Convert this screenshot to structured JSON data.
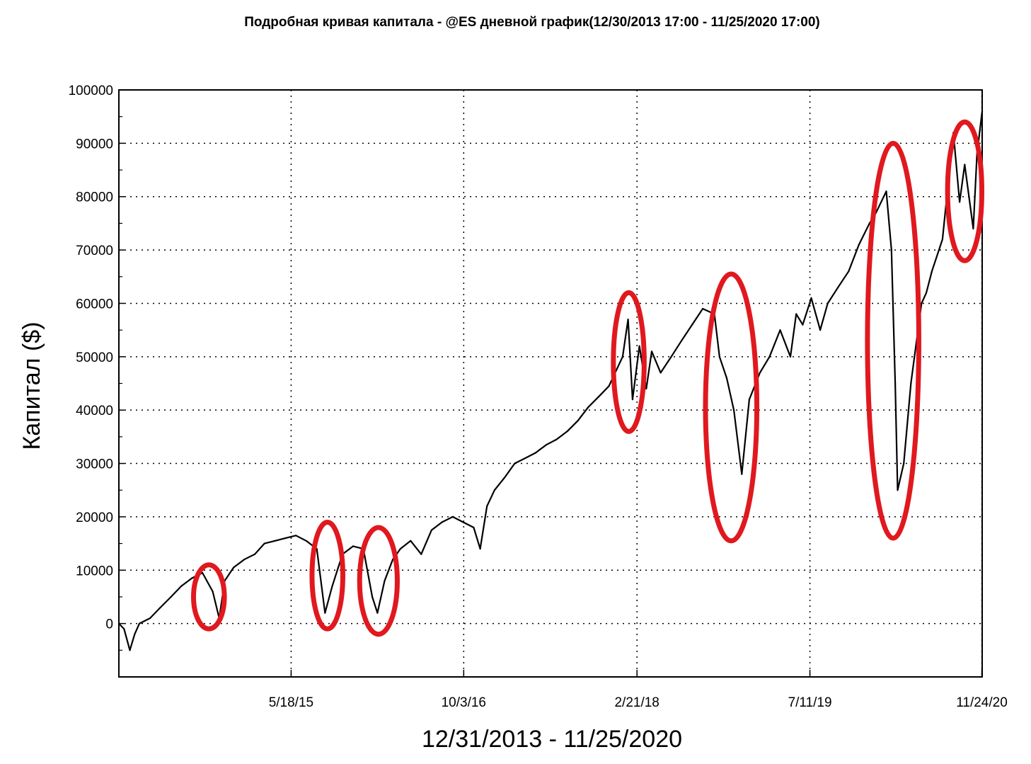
{
  "chart_data": {
    "type": "line",
    "title": "Подробная кривая капитала - @ES дневной график(12/30/2013 17:00 - 11/25/2020 17:00)",
    "xlabel": "12/31/2013 - 11/25/2020",
    "ylabel": "Капитал ($)",
    "x_ticks": [
      "5/18/15",
      "10/3/16",
      "2/21/18",
      "7/11/19",
      "11/24/20"
    ],
    "y_ticks": [
      "100000",
      "90000",
      "80000",
      "70000",
      "60000",
      "50000",
      "40000",
      "30000",
      "20000",
      "10000",
      "0"
    ],
    "ylim": [
      -10000,
      100000
    ],
    "xlim": [
      "2013-12-31",
      "2020-11-25"
    ],
    "grid": true,
    "line_color": "#000000",
    "annotation_color": "#e0191f",
    "series": [
      {
        "x": [
          "2013-12-31",
          "2014-01-15",
          "2014-02-01",
          "2014-02-15",
          "2014-03-01",
          "2014-04-01",
          "2014-05-01",
          "2014-06-01",
          "2014-07-01",
          "2014-08-01",
          "2014-09-01",
          "2014-10-01",
          "2014-10-20",
          "2014-11-05",
          "2014-12-01",
          "2015-01-01",
          "2015-02-01",
          "2015-03-01",
          "2015-04-01",
          "2015-05-01",
          "2015-06-01",
          "2015-07-01",
          "2015-08-01",
          "2015-08-25",
          "2015-09-15",
          "2015-10-15",
          "2015-11-15",
          "2015-12-15",
          "2016-01-10",
          "2016-01-25",
          "2016-02-15",
          "2016-03-10",
          "2016-04-01",
          "2016-05-01",
          "2016-06-01",
          "2016-07-01",
          "2016-08-01",
          "2016-09-01",
          "2016-10-01",
          "2016-11-01",
          "2016-11-20",
          "2016-12-10",
          "2017-01-01",
          "2017-02-01",
          "2017-03-01",
          "2017-04-01",
          "2017-05-01",
          "2017-06-01",
          "2017-07-01",
          "2017-08-01",
          "2017-09-01",
          "2017-10-01",
          "2017-11-01",
          "2017-12-01",
          "2018-01-10",
          "2018-01-26",
          "2018-02-08",
          "2018-02-28",
          "2018-03-20",
          "2018-04-05",
          "2018-05-01",
          "2018-06-01",
          "2018-07-01",
          "2018-08-01",
          "2018-09-01",
          "2018-10-05",
          "2018-10-20",
          "2018-11-10",
          "2018-12-01",
          "2018-12-24",
          "2019-01-15",
          "2019-02-15",
          "2019-03-15",
          "2019-04-15",
          "2019-05-15",
          "2019-06-01",
          "2019-06-20",
          "2019-07-15",
          "2019-08-10",
          "2019-09-01",
          "2019-10-01",
          "2019-11-01",
          "2019-12-01",
          "2020-01-01",
          "2020-01-20",
          "2020-02-19",
          "2020-03-05",
          "2020-03-16",
          "2020-03-23",
          "2020-04-10",
          "2020-05-01",
          "2020-06-01",
          "2020-06-15",
          "2020-07-01",
          "2020-08-01",
          "2020-09-02",
          "2020-09-20",
          "2020-10-05",
          "2020-10-30",
          "2020-11-10",
          "2020-11-25"
        ],
        "values": [
          0,
          -1000,
          -5000,
          -2000,
          0,
          1000,
          3000,
          5000,
          7000,
          8500,
          9500,
          6000,
          1000,
          8000,
          10500,
          12000,
          13000,
          15000,
          15500,
          16000,
          16500,
          15500,
          14000,
          2000,
          7000,
          13000,
          14500,
          14000,
          5000,
          2000,
          8000,
          12000,
          14000,
          15500,
          13000,
          17500,
          19000,
          20000,
          19000,
          18000,
          14000,
          22000,
          25000,
          27500,
          30000,
          31000,
          32000,
          33500,
          34500,
          36000,
          38000,
          40500,
          42500,
          44500,
          50000,
          57000,
          42000,
          52000,
          44000,
          51000,
          47000,
          50000,
          53000,
          56000,
          59000,
          58000,
          50000,
          46000,
          40000,
          28000,
          42000,
          47000,
          50000,
          55000,
          50000,
          58000,
          56000,
          61000,
          55000,
          60000,
          63000,
          66000,
          71000,
          75000,
          77000,
          81000,
          70000,
          45000,
          25000,
          30000,
          45000,
          60000,
          62000,
          66000,
          72000,
          92000,
          79000,
          86000,
          74000,
          88000,
          96000
        ]
      }
    ],
    "annotations": [
      {
        "type": "ellipse",
        "cx": "2014-09-20",
        "cy": 5000,
        "rx_days": 45,
        "ry": 6000
      },
      {
        "type": "ellipse",
        "cx": "2015-09-01",
        "cy": 9000,
        "rx_days": 45,
        "ry": 10000
      },
      {
        "type": "ellipse",
        "cx": "2016-01-28",
        "cy": 8000,
        "rx_days": 55,
        "ry": 10000
      },
      {
        "type": "ellipse",
        "cx": "2018-01-28",
        "cy": 49000,
        "rx_days": 45,
        "ry": 13000
      },
      {
        "type": "ellipse",
        "cx": "2018-11-23",
        "cy": 40500,
        "rx_days": 75,
        "ry": 25000
      },
      {
        "type": "ellipse",
        "cx": "2020-03-10",
        "cy": 53000,
        "rx_days": 75,
        "ry": 37000
      },
      {
        "type": "ellipse",
        "cx": "2020-10-05",
        "cy": 81000,
        "rx_days": 50,
        "ry": 13000
      }
    ]
  }
}
